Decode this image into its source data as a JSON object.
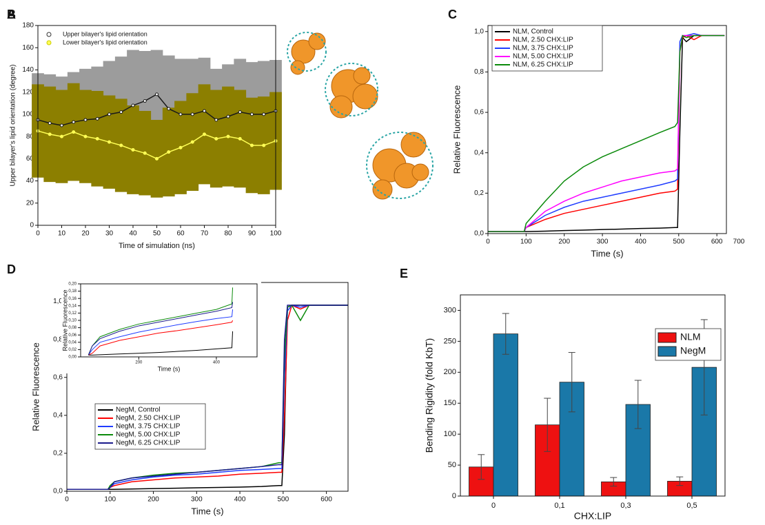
{
  "figure_b": {
    "panel": "B"
  },
  "chart_data": [
    {
      "type": "line",
      "panel": "A",
      "x_label": "Time of simulation (ns)",
      "y_label": "Upper bilayer's lipid orientation (degree)",
      "x": [
        0,
        5,
        10,
        15,
        20,
        25,
        30,
        35,
        40,
        45,
        50,
        55,
        60,
        65,
        70,
        75,
        80,
        85,
        90,
        95,
        100
      ],
      "series": [
        {
          "name": "Upper bilayer's lipid orientation",
          "color": "#1a1a1a",
          "band_color": "#9c9c9c",
          "values": [
            95,
            92,
            90,
            93,
            95,
            96,
            100,
            102,
            108,
            112,
            118,
            105,
            100,
            100,
            103,
            95,
            98,
            102,
            100,
            100,
            103
          ],
          "errors": [
            42,
            44,
            44,
            45,
            46,
            47,
            48,
            50,
            50,
            45,
            40,
            48,
            50,
            50,
            48,
            46,
            47,
            48,
            47,
            48,
            46
          ]
        },
        {
          "name": "Lower bilayer's lipid orientation",
          "color": "#ffff55",
          "band_color": "#8c7f00",
          "values": [
            85,
            82,
            80,
            84,
            80,
            78,
            75,
            72,
            68,
            65,
            60,
            66,
            70,
            75,
            82,
            78,
            80,
            78,
            72,
            72,
            76
          ],
          "errors": [
            42,
            43,
            42,
            44,
            42,
            43,
            42,
            42,
            40,
            38,
            35,
            40,
            42,
            44,
            45,
            44,
            45,
            44,
            43,
            44,
            44
          ]
        }
      ],
      "xlim": [
        0,
        100
      ],
      "xticks": [
        0,
        10,
        20,
        30,
        40,
        50,
        60,
        70,
        80,
        90,
        100
      ],
      "ylim": [
        0,
        180
      ],
      "yticks": [
        0,
        20,
        40,
        60,
        80,
        100,
        120,
        140,
        160,
        180
      ],
      "legend": "upper left",
      "markers": true
    },
    {
      "type": "line",
      "panel": "C",
      "x_label": "Time (s)",
      "y_label": "Relative Fluorescence",
      "x": [
        0,
        50,
        95,
        100,
        150,
        200,
        250,
        300,
        350,
        400,
        450,
        490,
        497,
        503,
        510,
        520,
        540,
        560,
        600,
        620
      ],
      "series": [
        {
          "name": "NLM, Control",
          "color": "#000000",
          "values": [
            0.01,
            0.01,
            0.01,
            0.01,
            0.012,
            0.015,
            0.017,
            0.02,
            0.022,
            0.025,
            0.027,
            0.03,
            0.03,
            0.5,
            0.97,
            0.95,
            0.98,
            0.98,
            0.98,
            0.98
          ]
        },
        {
          "name": "NLM, 2.50 CHX:LIP",
          "color": "#ff0000",
          "values": [
            0.01,
            0.01,
            0.01,
            0.03,
            0.07,
            0.1,
            0.12,
            0.14,
            0.16,
            0.18,
            0.2,
            0.21,
            0.22,
            0.9,
            0.97,
            0.98,
            0.96,
            0.98,
            0.98,
            0.98
          ]
        },
        {
          "name": "NLM, 3.75 CHX:LIP",
          "color": "#1f3cff",
          "values": [
            0.01,
            0.01,
            0.01,
            0.03,
            0.09,
            0.13,
            0.16,
            0.18,
            0.2,
            0.22,
            0.24,
            0.26,
            0.27,
            0.95,
            0.98,
            0.98,
            0.99,
            0.98,
            0.98,
            0.98
          ]
        },
        {
          "name": "NLM, 5.00 CHX:LIP",
          "color": "#ff00ff",
          "values": [
            0.01,
            0.01,
            0.01,
            0.03,
            0.11,
            0.16,
            0.2,
            0.23,
            0.26,
            0.28,
            0.3,
            0.31,
            0.32,
            0.9,
            0.98,
            0.98,
            0.98,
            0.98,
            0.98,
            0.98
          ]
        },
        {
          "name": "NLM, 6.25 CHX:LIP",
          "color": "#0a8a0a",
          "values": [
            0.01,
            0.01,
            0.01,
            0.05,
            0.16,
            0.26,
            0.33,
            0.38,
            0.42,
            0.46,
            0.5,
            0.53,
            0.55,
            0.9,
            0.98,
            0.97,
            0.98,
            0.98,
            0.98,
            0.98
          ]
        }
      ],
      "xlim": [
        0,
        625
      ],
      "xticks": [
        0,
        100,
        200,
        300,
        400,
        500,
        600
      ],
      "annotations": [
        "700"
      ],
      "ylim": [
        0,
        1.03
      ],
      "yticks": [
        {
          "value": 0,
          "label": "0,0"
        },
        {
          "value": 0.2,
          "label": "0,2"
        },
        {
          "value": 0.4,
          "label": "0,4"
        },
        {
          "value": 0.6,
          "label": "0,6"
        },
        {
          "value": 0.8,
          "label": "0,8"
        },
        {
          "value": 1,
          "label": "1,0"
        }
      ],
      "legend": "upper left"
    },
    {
      "type": "line",
      "panel": "D",
      "x_label": "Time (s)",
      "y_label": "Relative Fluorescence",
      "x": [
        0,
        50,
        95,
        100,
        110,
        150,
        200,
        250,
        300,
        350,
        400,
        450,
        490,
        497,
        503,
        510,
        520,
        540,
        560,
        600,
        650
      ],
      "series": [
        {
          "name": "NegM, Control",
          "color": "#000000",
          "values": [
            0.01,
            0.01,
            0.01,
            0.01,
            0.01,
            0.012,
            0.014,
            0.016,
            0.018,
            0.02,
            0.022,
            0.025,
            0.03,
            0.03,
            0.3,
            0.97,
            0.98,
            0.98,
            0.98,
            0.98,
            0.98
          ]
        },
        {
          "name": "NegM, 2.50 CHX:LIP",
          "color": "#ff0000",
          "values": [
            0.01,
            0.01,
            0.01,
            0.02,
            0.03,
            0.05,
            0.06,
            0.07,
            0.075,
            0.08,
            0.09,
            0.095,
            0.1,
            0.1,
            0.4,
            0.9,
            0.98,
            0.96,
            0.98,
            0.98,
            0.98
          ]
        },
        {
          "name": "NegM, 3.75 CHX:LIP",
          "color": "#1f3cff",
          "values": [
            0.01,
            0.01,
            0.01,
            0.02,
            0.04,
            0.06,
            0.075,
            0.085,
            0.09,
            0.1,
            0.11,
            0.115,
            0.12,
            0.12,
            0.6,
            0.95,
            0.98,
            0.97,
            0.98,
            0.98,
            0.98
          ]
        },
        {
          "name": "NegM, 5.00 CHX:LIP",
          "color": "#0a8a0a",
          "values": [
            0.01,
            0.01,
            0.01,
            0.03,
            0.05,
            0.07,
            0.085,
            0.095,
            0.1,
            0.11,
            0.12,
            0.13,
            0.15,
            0.15,
            0.7,
            0.97,
            0.98,
            0.9,
            0.98,
            0.98,
            0.98
          ]
        },
        {
          "name": "NegM, 6.25 CHX:LIP",
          "color": "#1a1a8c",
          "values": [
            0.01,
            0.01,
            0.01,
            0.02,
            0.05,
            0.07,
            0.08,
            0.09,
            0.1,
            0.11,
            0.12,
            0.13,
            0.14,
            0.14,
            0.8,
            0.98,
            0.98,
            0.98,
            0.98,
            0.98,
            0.98
          ]
        }
      ],
      "xlim": [
        0,
        650
      ],
      "xticks": [
        0,
        100,
        200,
        300,
        400,
        500,
        600
      ],
      "ylim": [
        0,
        1.1
      ],
      "yticks": [
        {
          "value": 0,
          "label": "0,0"
        },
        {
          "value": 0.2,
          "label": "0,2"
        },
        {
          "value": 0.4,
          "label": "0,4"
        },
        {
          "value": 0.6,
          "label": "0,6"
        },
        {
          "value": 0.8,
          "label": "0,8"
        },
        {
          "value": 1,
          "label": "1,0"
        }
      ],
      "legend": "lower left"
    },
    {
      "type": "line",
      "x_label": "Time (s)",
      "y_label": "Relative Fluorescence",
      "x": [
        70,
        80,
        100,
        150,
        200,
        250,
        300,
        350,
        400,
        440,
        442
      ],
      "series": [
        {
          "color": "#000000",
          "values": [
            0.005,
            0.005,
            0.006,
            0.008,
            0.01,
            0.012,
            0.015,
            0.018,
            0.022,
            0.025,
            0.07
          ]
        },
        {
          "color": "#ff0000",
          "values": [
            0.005,
            0.01,
            0.03,
            0.045,
            0.055,
            0.065,
            0.072,
            0.08,
            0.088,
            0.095,
            0.1
          ]
        },
        {
          "color": "#1f3cff",
          "values": [
            0.005,
            0.02,
            0.04,
            0.055,
            0.068,
            0.078,
            0.088,
            0.097,
            0.105,
            0.11,
            0.13
          ]
        },
        {
          "color": "#0a8a0a",
          "values": [
            0.005,
            0.03,
            0.055,
            0.075,
            0.09,
            0.1,
            0.11,
            0.12,
            0.13,
            0.145,
            0.19
          ]
        },
        {
          "color": "#1a1a8c",
          "values": [
            0.005,
            0.03,
            0.05,
            0.07,
            0.085,
            0.095,
            0.105,
            0.115,
            0.125,
            0.135,
            0.15
          ]
        }
      ],
      "xlim": [
        50,
        505
      ],
      "xticks": [
        200,
        400
      ],
      "ylim": [
        0,
        0.2
      ],
      "yticks": [
        {
          "value": 0,
          "label": "0,00"
        },
        {
          "value": 0.02,
          "label": "0,02"
        },
        {
          "value": 0.04,
          "label": "0,04"
        },
        {
          "value": 0.06,
          "label": "0,06"
        },
        {
          "value": 0.08,
          "label": "0,08"
        },
        {
          "value": 0.1,
          "label": "0,10"
        },
        {
          "value": 0.12,
          "label": "0,12"
        },
        {
          "value": 0.14,
          "label": "0,14"
        },
        {
          "value": 0.16,
          "label": "0,16"
        },
        {
          "value": 0.18,
          "label": "0,18"
        },
        {
          "value": 0.2,
          "label": "0,20"
        }
      ]
    },
    {
      "type": "bar",
      "panel": "E",
      "x_label": "CHX:LIP",
      "y_label": "Bending Rigidity (fold KbT)",
      "categories": [
        "0",
        "0,1",
        "0,3",
        "0,5"
      ],
      "series": [
        {
          "name": "NLM",
          "color": "#ee1111",
          "values": [
            47,
            115,
            23,
            24
          ],
          "errors": [
            20,
            43,
            7,
            7
          ]
        },
        {
          "name": "NegM",
          "color": "#1a78a8",
          "values": [
            262,
            184,
            148,
            208
          ],
          "errors": [
            33,
            48,
            39,
            77
          ]
        }
      ],
      "ylim": [
        0,
        325
      ],
      "yticks": [
        0,
        50,
        100,
        150,
        200,
        250,
        300
      ],
      "legend": "upper right"
    }
  ]
}
